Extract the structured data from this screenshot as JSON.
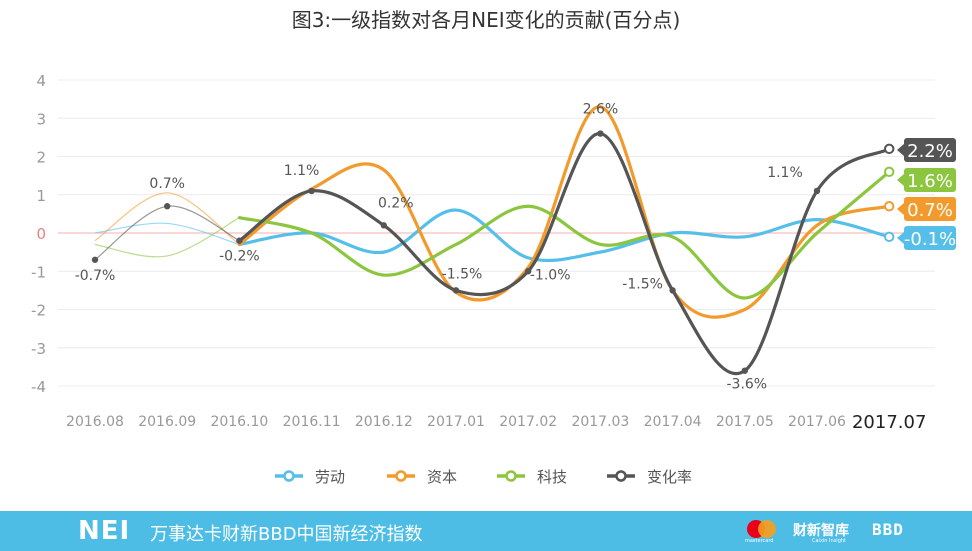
{
  "title": "图3:一级指数对各月NEI变化的贡献(百分点)",
  "footer": {
    "logo": "NEI",
    "subtitle": "万事达卡财新BBD中国新经济指数",
    "mastercard": "mastercard",
    "caixin": "财新智库",
    "caixin_sub": "Caixin Insight",
    "bbd": "BBD"
  },
  "colors": {
    "劳动": "#56bfe9",
    "资本": "#f39a2c",
    "科技": "#8cc63f",
    "变化率": "#555555",
    "zero_line": "#f6b2b2",
    "footer": "#4dbde6"
  },
  "chart_data": {
    "type": "line",
    "x": [
      "2016.08",
      "2016.09",
      "2016.10",
      "2016.11",
      "2016.12",
      "2017.01",
      "2017.02",
      "2017.03",
      "2017.04",
      "2017.05",
      "2017.06",
      "2017.07"
    ],
    "ylim": [
      -4,
      4
    ],
    "yticks": [
      4,
      3,
      2,
      1,
      0,
      -1,
      -2,
      -3,
      -4
    ],
    "grid": true,
    "legend": "bottom",
    "series": [
      {
        "name": "劳动",
        "values": [
          0.0,
          0.25,
          -0.3,
          0.0,
          -0.5,
          0.6,
          -0.65,
          -0.5,
          0.0,
          -0.1,
          0.35,
          -0.1
        ]
      },
      {
        "name": "资本",
        "values": [
          -0.2,
          1.05,
          -0.3,
          1.15,
          1.65,
          -1.55,
          -0.9,
          3.3,
          -1.5,
          -2.0,
          0.2,
          0.7
        ]
      },
      {
        "name": "科技",
        "values": [
          -0.3,
          -0.6,
          0.4,
          0.0,
          -1.1,
          -0.3,
          0.7,
          -0.3,
          -0.1,
          -1.7,
          0.0,
          1.6
        ]
      },
      {
        "name": "变化率",
        "values": [
          -0.7,
          0.7,
          -0.2,
          1.1,
          0.2,
          -1.5,
          -1.0,
          2.6,
          -1.5,
          -3.6,
          1.1,
          2.2
        ]
      }
    ],
    "point_labels": [
      "-0.7%",
      "0.7%",
      "-0.2%",
      "1.1%",
      "0.2%",
      "-1.5%",
      "-1.0%",
      "2.6%",
      "-1.5%",
      "-3.6%",
      "1.1%",
      "2.2%"
    ],
    "end_labels": [
      {
        "series": "变化率",
        "text": "2.2%"
      },
      {
        "series": "科技",
        "text": "1.6%"
      },
      {
        "series": "资本",
        "text": "0.7%"
      },
      {
        "series": "劳动",
        "text": "-0.1%"
      }
    ]
  }
}
